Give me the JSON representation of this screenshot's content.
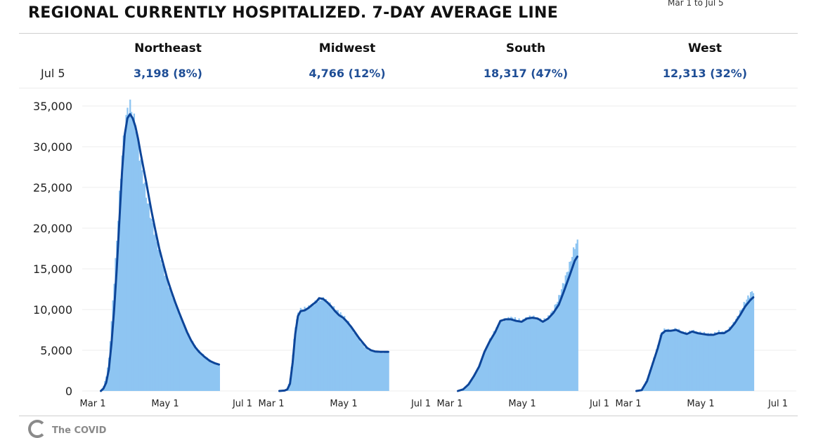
{
  "header": {
    "title": "REGIONAL CURRENTLY HOSPITALIZED. 7-DAY AVERAGE LINE",
    "date_range": "Mar 1 to Jul 5",
    "date_label": "Jul 5"
  },
  "regions": [
    {
      "name": "Northeast",
      "value": "3,198 (8%)"
    },
    {
      "name": "Midwest",
      "value": "4,766 (12%)"
    },
    {
      "name": "South",
      "value": "18,317 (47%)"
    },
    {
      "name": "West",
      "value": "12,313 (32%)"
    }
  ],
  "footer": {
    "logo_text": "The COVID"
  },
  "colors": {
    "bar": "#8ec5f2",
    "line": "#0d4599",
    "value_text": "#1f4e96",
    "grid": "#ececec"
  },
  "chart_data": [
    {
      "type": "bar",
      "panel": "Northeast",
      "x_ticks": [
        "Mar 1",
        "May 1",
        "Jul 1"
      ],
      "ylim": [
        0,
        35000
      ],
      "y_ticks": [
        0,
        5000,
        10000,
        15000,
        20000,
        25000,
        30000,
        35000
      ],
      "series": [
        {
          "kind": "daily_bars",
          "points": [
            [
              14,
              0
            ],
            [
              16,
              600
            ],
            [
              18,
              1800
            ],
            [
              20,
              4000
            ],
            [
              22,
              8500
            ],
            [
              24,
              13500
            ],
            [
              26,
              18500
            ],
            [
              28,
              24000
            ],
            [
              30,
              29000
            ],
            [
              32,
              32500
            ],
            [
              34,
              34500
            ],
            [
              36,
              35000
            ],
            [
              38,
              34000
            ],
            [
              40,
              32500
            ],
            [
              42,
              30000
            ],
            [
              44,
              28000
            ],
            [
              46,
              26000
            ],
            [
              48,
              24000
            ],
            [
              50,
              22500
            ],
            [
              52,
              21000
            ],
            [
              55,
              19000
            ],
            [
              58,
              17000
            ],
            [
              61,
              15000
            ],
            [
              64,
              13500
            ],
            [
              67,
              12000
            ],
            [
              70,
              10800
            ],
            [
              73,
              9500
            ],
            [
              76,
              8300
            ],
            [
              79,
              7200
            ],
            [
              82,
              6300
            ],
            [
              85,
              5500
            ],
            [
              88,
              4900
            ],
            [
              92,
              4300
            ],
            [
              96,
              3800
            ],
            [
              100,
              3400
            ],
            [
              103,
              3200
            ]
          ]
        },
        {
          "kind": "7_day_average",
          "points": [
            [
              14,
              0
            ],
            [
              16,
              300
            ],
            [
              18,
              1000
            ],
            [
              20,
              2600
            ],
            [
              22,
              5800
            ],
            [
              24,
              10000
            ],
            [
              26,
              15000
            ],
            [
              28,
              21000
            ],
            [
              30,
              27000
            ],
            [
              32,
              31500
            ],
            [
              34,
              33500
            ],
            [
              36,
              34000
            ],
            [
              38,
              33500
            ],
            [
              40,
              32500
            ],
            [
              42,
              31000
            ],
            [
              44,
              29200
            ],
            [
              46,
              27500
            ],
            [
              48,
              25800
            ],
            [
              50,
              24000
            ],
            [
              52,
              22200
            ],
            [
              55,
              19800
            ],
            [
              58,
              17500
            ],
            [
              61,
              15600
            ],
            [
              64,
              13800
            ],
            [
              67,
              12300
            ],
            [
              70,
              10900
            ],
            [
              73,
              9600
            ],
            [
              76,
              8400
            ],
            [
              79,
              7200
            ],
            [
              82,
              6200
            ],
            [
              85,
              5400
            ],
            [
              88,
              4800
            ],
            [
              92,
              4200
            ],
            [
              96,
              3700
            ],
            [
              100,
              3400
            ],
            [
              103,
              3250
            ]
          ]
        }
      ]
    },
    {
      "type": "bar",
      "panel": "Midwest",
      "x_ticks": [
        "Mar 1",
        "May 1",
        "Jul 1"
      ],
      "ylim": [
        0,
        35000
      ],
      "series": [
        {
          "kind": "daily_bars",
          "points": [
            [
              14,
              0
            ],
            [
              18,
              0
            ],
            [
              20,
              300
            ],
            [
              22,
              1500
            ],
            [
              24,
              4500
            ],
            [
              26,
              8000
            ],
            [
              28,
              9500
            ],
            [
              30,
              10000
            ],
            [
              33,
              10100
            ],
            [
              36,
              10300
            ],
            [
              39,
              10700
            ],
            [
              42,
              11000
            ],
            [
              45,
              11300
            ],
            [
              48,
              11300
            ],
            [
              51,
              10800
            ],
            [
              54,
              10300
            ],
            [
              57,
              9900
            ],
            [
              60,
              9500
            ],
            [
              63,
              9000
            ],
            [
              66,
              8400
            ],
            [
              69,
              7600
            ],
            [
              72,
              6800
            ],
            [
              75,
              6100
            ],
            [
              78,
              5500
            ],
            [
              81,
              5100
            ],
            [
              84,
              4900
            ],
            [
              88,
              4800
            ],
            [
              92,
              4750
            ],
            [
              96,
              4750
            ]
          ]
        },
        {
          "kind": "7_day_average",
          "points": [
            [
              14,
              0
            ],
            [
              18,
              50
            ],
            [
              20,
              200
            ],
            [
              22,
              900
            ],
            [
              24,
              3500
            ],
            [
              26,
              7000
            ],
            [
              28,
              9200
            ],
            [
              30,
              9800
            ],
            [
              33,
              9900
            ],
            [
              36,
              10200
            ],
            [
              39,
              10600
            ],
            [
              42,
              11000
            ],
            [
              44,
              11400
            ],
            [
              47,
              11300
            ],
            [
              50,
              10900
            ],
            [
              53,
              10400
            ],
            [
              56,
              9800
            ],
            [
              59,
              9300
            ],
            [
              62,
              9000
            ],
            [
              65,
              8500
            ],
            [
              68,
              7900
            ],
            [
              71,
              7200
            ],
            [
              74,
              6500
            ],
            [
              77,
              5900
            ],
            [
              80,
              5300
            ],
            [
              83,
              5000
            ],
            [
              86,
              4850
            ],
            [
              90,
              4800
            ],
            [
              96,
              4800
            ]
          ]
        }
      ]
    },
    {
      "type": "bar",
      "panel": "South",
      "x_ticks": [
        "Mar 1",
        "May 1",
        "Jul 1"
      ],
      "ylim": [
        0,
        35000
      ],
      "series": [
        {
          "kind": "daily_bars",
          "points": [
            [
              14,
              0
            ],
            [
              18,
              300
            ],
            [
              22,
              900
            ],
            [
              26,
              1800
            ],
            [
              30,
              3000
            ],
            [
              34,
              4800
            ],
            [
              38,
              6300
            ],
            [
              42,
              7500
            ],
            [
              46,
              8500
            ],
            [
              50,
              8800
            ],
            [
              54,
              9000
            ],
            [
              58,
              8800
            ],
            [
              62,
              8600
            ],
            [
              66,
              9000
            ],
            [
              70,
              9100
            ],
            [
              74,
              8900
            ],
            [
              78,
              8600
            ],
            [
              82,
              9100
            ],
            [
              86,
              10000
            ],
            [
              90,
              11500
            ],
            [
              94,
              13500
            ],
            [
              98,
              15500
            ],
            [
              102,
              17800
            ],
            [
              104,
              18300
            ]
          ]
        },
        {
          "kind": "7_day_average",
          "points": [
            [
              14,
              0
            ],
            [
              18,
              200
            ],
            [
              22,
              800
            ],
            [
              26,
              1800
            ],
            [
              30,
              3000
            ],
            [
              34,
              4800
            ],
            [
              38,
              6100
            ],
            [
              42,
              7200
            ],
            [
              46,
              8600
            ],
            [
              50,
              8800
            ],
            [
              54,
              8800
            ],
            [
              58,
              8600
            ],
            [
              62,
              8500
            ],
            [
              66,
              8900
            ],
            [
              70,
              9000
            ],
            [
              74,
              8900
            ],
            [
              78,
              8500
            ],
            [
              82,
              8900
            ],
            [
              86,
              9600
            ],
            [
              90,
              10600
            ],
            [
              94,
              12300
            ],
            [
              98,
              14100
            ],
            [
              102,
              16000
            ],
            [
              104,
              16500
            ]
          ]
        }
      ]
    },
    {
      "type": "bar",
      "panel": "West",
      "x_ticks": [
        "Mar 1",
        "May 1",
        "Jul 1"
      ],
      "ylim": [
        0,
        35000
      ],
      "series": [
        {
          "kind": "daily_bars",
          "points": [
            [
              14,
              0
            ],
            [
              18,
              200
            ],
            [
              22,
              1500
            ],
            [
              26,
              3500
            ],
            [
              30,
              5600
            ],
            [
              33,
              7300
            ],
            [
              36,
              7600
            ],
            [
              40,
              7400
            ],
            [
              44,
              7600
            ],
            [
              48,
              7300
            ],
            [
              52,
              7100
            ],
            [
              56,
              7400
            ],
            [
              60,
              7200
            ],
            [
              64,
              7100
            ],
            [
              68,
              7000
            ],
            [
              72,
              7000
            ],
            [
              76,
              7300
            ],
            [
              80,
              7200
            ],
            [
              84,
              7700
            ],
            [
              88,
              8500
            ],
            [
              92,
              9700
            ],
            [
              96,
              11000
            ],
            [
              100,
              12000
            ],
            [
              102,
              12300
            ]
          ]
        },
        {
          "kind": "7_day_average",
          "points": [
            [
              14,
              0
            ],
            [
              18,
              100
            ],
            [
              22,
              1200
            ],
            [
              26,
              3200
            ],
            [
              30,
              5200
            ],
            [
              33,
              7000
            ],
            [
              36,
              7400
            ],
            [
              40,
              7400
            ],
            [
              44,
              7500
            ],
            [
              48,
              7200
            ],
            [
              52,
              7000
            ],
            [
              56,
              7300
            ],
            [
              60,
              7100
            ],
            [
              64,
              7000
            ],
            [
              68,
              6900
            ],
            [
              72,
              6900
            ],
            [
              76,
              7100
            ],
            [
              80,
              7100
            ],
            [
              84,
              7500
            ],
            [
              88,
              8300
            ],
            [
              92,
              9300
            ],
            [
              96,
              10400
            ],
            [
              100,
              11200
            ],
            [
              102,
              11500
            ]
          ]
        }
      ]
    }
  ]
}
